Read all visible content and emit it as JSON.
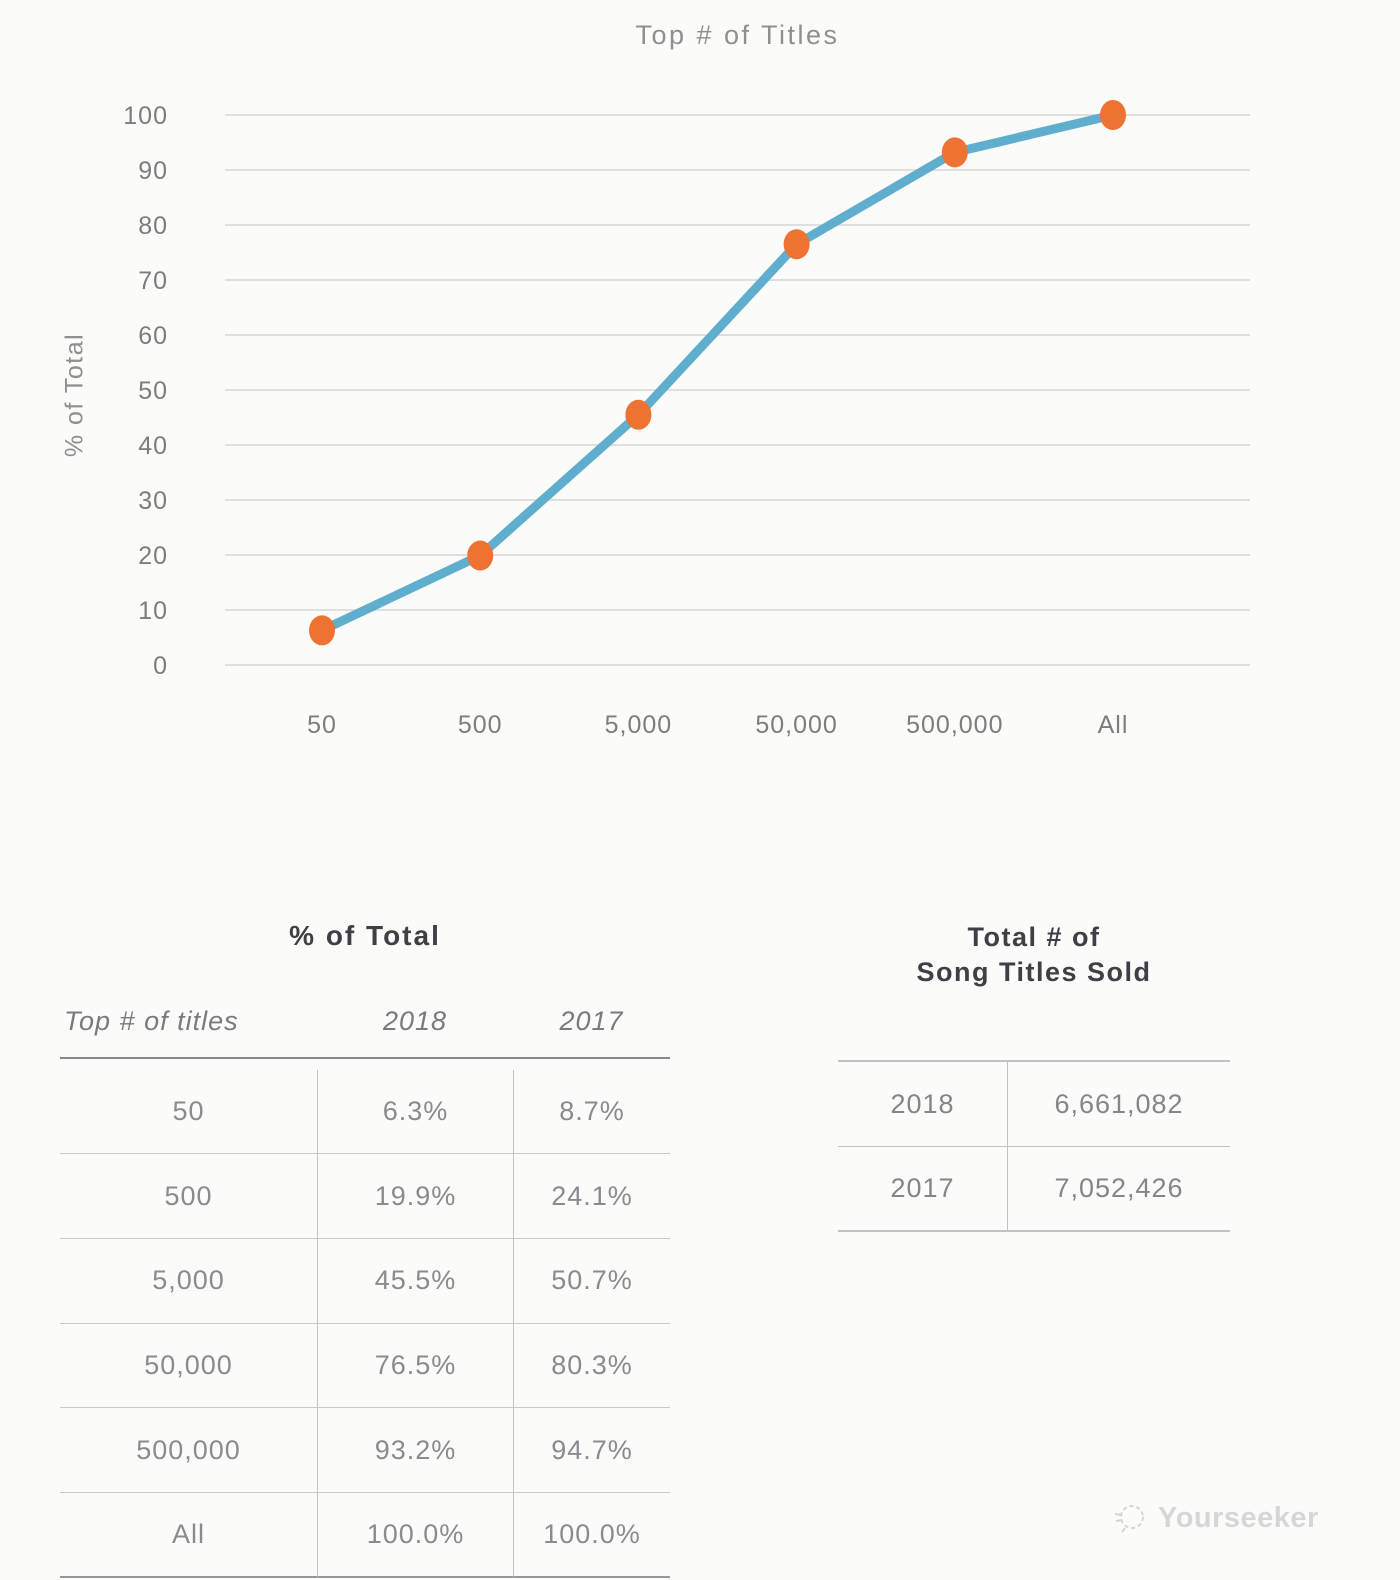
{
  "chart_data": {
    "type": "line",
    "title": "Top # of Titles",
    "xlabel": "",
    "ylabel": "% of Total",
    "categories": [
      "50",
      "500",
      "5,000",
      "50,000",
      "500,000",
      "All"
    ],
    "series": [
      {
        "name": "2018",
        "values": [
          6.3,
          19.9,
          45.5,
          76.5,
          93.2,
          100.0
        ]
      }
    ],
    "ylim": [
      0,
      100
    ],
    "ytick_step": 10,
    "grid": true,
    "legend": false
  },
  "colors": {
    "background": "#FBFBFA",
    "line": "#5FAECE",
    "marker": "#EE7231",
    "grid": "#D6D6D6",
    "axis_text": "#7D7D7D",
    "chart_title_text": "#8F8F8F",
    "table_title_text": "#3F4045",
    "table_text": "#8B8B8F",
    "table_line": "#C2C2C5",
    "watermark": "#D4D4D4"
  },
  "tables": {
    "percent_of_total": {
      "title": "% of Total",
      "columns": [
        "Top # of titles",
        "2018",
        "2017"
      ],
      "rows": [
        [
          "50",
          "6.3%",
          "8.7%"
        ],
        [
          "500",
          "19.9%",
          "24.1%"
        ],
        [
          "5,000",
          "45.5%",
          "50.7%"
        ],
        [
          "50,000",
          "76.5%",
          "80.3%"
        ],
        [
          "500,000",
          "93.2%",
          "94.7%"
        ],
        [
          "All",
          "100.0%",
          "100.0%"
        ]
      ]
    },
    "total_sold": {
      "title_line1": "Total # of",
      "title_line2": "Song Titles Sold",
      "rows": [
        [
          "2018",
          "6,661,082"
        ],
        [
          "2017",
          "7,052,426"
        ]
      ]
    }
  },
  "watermark": {
    "label": "Yourseeker"
  }
}
